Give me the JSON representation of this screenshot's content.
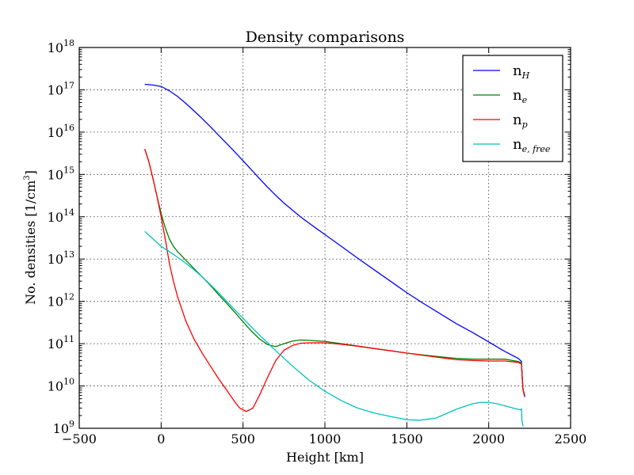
{
  "chart_data": {
    "type": "line",
    "title": "Density comparisons",
    "xlabel": "Height [km]",
    "ylabel": "No. densities [1/cm",
    "ylabel_sup": "3",
    "ylabel_end": "]",
    "xlim": [
      -500,
      2500
    ],
    "ylim": [
      1000000000.0,
      1e+18
    ],
    "yscale": "log",
    "grid": true,
    "legend_position": "top-right",
    "xticks": [
      -500,
      0,
      500,
      1000,
      1500,
      2000,
      2500
    ],
    "xtick_labels": [
      "−500",
      "0",
      "500",
      "1000",
      "1500",
      "2000",
      "2500"
    ],
    "ytick_exponents": [
      9,
      10,
      11,
      12,
      13,
      14,
      15,
      16,
      17,
      18
    ],
    "ytick_base": "10",
    "series": [
      {
        "name": "n",
        "name_sub": "H",
        "color": "#0000ff",
        "points": [
          [
            -100,
            1.35e+17
          ],
          [
            -50,
            1.3e+17
          ],
          [
            0,
            1.2e+17
          ],
          [
            50,
            9.5e+16
          ],
          [
            100,
            7e+16
          ],
          [
            150,
            4.8e+16
          ],
          [
            200,
            3.2e+16
          ],
          [
            250,
            2.1e+16
          ],
          [
            300,
            1.35e+16
          ],
          [
            350,
            8500000000000000.0
          ],
          [
            400,
            5400000000000000.0
          ],
          [
            450,
            3400000000000000.0
          ],
          [
            500,
            2100000000000000.0
          ],
          [
            550,
            1300000000000000.0
          ],
          [
            600,
            800000000000000.0
          ],
          [
            650,
            500000000000000.0
          ],
          [
            700,
            320000000000000.0
          ],
          [
            750,
            210000000000000.0
          ],
          [
            800,
            145000000000000.0
          ],
          [
            850,
            100000000000000.0
          ],
          [
            900,
            72000000000000.0
          ],
          [
            950,
            52000000000000.0
          ],
          [
            1000,
            38000000000000.0
          ],
          [
            1100,
            20000000000000.0
          ],
          [
            1200,
            10500000000000.0
          ],
          [
            1300,
            5600000000000.0
          ],
          [
            1400,
            3000000000000.0
          ],
          [
            1500,
            1600000000000.0
          ],
          [
            1600,
            900000000000.0
          ],
          [
            1700,
            520000000000.0
          ],
          [
            1800,
            300000000000.0
          ],
          [
            1900,
            185000000000.0
          ],
          [
            2000,
            110000000000.0
          ],
          [
            2100,
            65000000000.0
          ],
          [
            2180,
            45000000000.0
          ],
          [
            2200,
            38000000000.0
          ],
          [
            2205,
            15000000000.0
          ],
          [
            2210,
            8000000000.0
          ],
          [
            2220,
            5500000000.0
          ]
        ]
      },
      {
        "name": "n",
        "name_sub": "e",
        "color": "#008000",
        "points": [
          [
            -100,
            4000000000000000.0
          ],
          [
            -75,
            2000000000000000.0
          ],
          [
            -50,
            800000000000000.0
          ],
          [
            -25,
            300000000000000.0
          ],
          [
            0,
            120000000000000.0
          ],
          [
            25,
            55000000000000.0
          ],
          [
            50,
            30000000000000.0
          ],
          [
            75,
            20000000000000.0
          ],
          [
            100,
            15000000000000.0
          ],
          [
            150,
            9500000000000.0
          ],
          [
            200,
            6000000000000.0
          ],
          [
            250,
            3800000000000.0
          ],
          [
            300,
            2400000000000.0
          ],
          [
            350,
            1450000000000.0
          ],
          [
            400,
            900000000000.0
          ],
          [
            450,
            550000000000.0
          ],
          [
            500,
            330000000000.0
          ],
          [
            550,
            200000000000.0
          ],
          [
            600,
            130000000000.0
          ],
          [
            650,
            95000000000.0
          ],
          [
            700,
            85000000000.0
          ],
          [
            750,
            100000000000.0
          ],
          [
            800,
            115000000000.0
          ],
          [
            850,
            122000000000.0
          ],
          [
            900,
            120000000000.0
          ],
          [
            1000,
            113000000000.0
          ],
          [
            1100,
            100000000000.0
          ],
          [
            1200,
            88000000000.0
          ],
          [
            1300,
            77000000000.0
          ],
          [
            1400,
            68000000000.0
          ],
          [
            1500,
            60000000000.0
          ],
          [
            1600,
            54000000000.0
          ],
          [
            1700,
            49000000000.0
          ],
          [
            1800,
            45000000000.0
          ],
          [
            1900,
            43000000000.0
          ],
          [
            2000,
            43000000000.0
          ],
          [
            2100,
            43000000000.0
          ],
          [
            2180,
            38000000000.0
          ],
          [
            2200,
            35000000000.0
          ],
          [
            2205,
            15000000000.0
          ],
          [
            2210,
            8000000000.0
          ],
          [
            2220,
            6000000000.0
          ]
        ]
      },
      {
        "name": "n",
        "name_sub": "p",
        "color": "#ff0000",
        "points": [
          [
            -100,
            4000000000000000.0
          ],
          [
            -75,
            2000000000000000.0
          ],
          [
            -50,
            800000000000000.0
          ],
          [
            -25,
            300000000000000.0
          ],
          [
            0,
            100000000000000.0
          ],
          [
            25,
            30000000000000.0
          ],
          [
            50,
            8000000000000.0
          ],
          [
            75,
            3000000000000.0
          ],
          [
            100,
            1300000000000.0
          ],
          [
            150,
            350000000000.0
          ],
          [
            200,
            130000000000.0
          ],
          [
            250,
            60000000000.0
          ],
          [
            300,
            30000000000.0
          ],
          [
            350,
            15000000000.0
          ],
          [
            400,
            8000000000.0
          ],
          [
            450,
            4200000000.0
          ],
          [
            480,
            3000000000.0
          ],
          [
            520,
            2500000000.0
          ],
          [
            560,
            3000000000.0
          ],
          [
            600,
            6000000000.0
          ],
          [
            650,
            16000000000.0
          ],
          [
            700,
            40000000000.0
          ],
          [
            750,
            70000000000.0
          ],
          [
            800,
            90000000000.0
          ],
          [
            850,
            102000000000.0
          ],
          [
            900,
            105000000000.0
          ],
          [
            1000,
            105000000000.0
          ],
          [
            1100,
            97000000000.0
          ],
          [
            1200,
            87000000000.0
          ],
          [
            1300,
            77000000000.0
          ],
          [
            1400,
            68000000000.0
          ],
          [
            1500,
            60000000000.0
          ],
          [
            1600,
            53000000000.0
          ],
          [
            1700,
            47000000000.0
          ],
          [
            1800,
            42000000000.0
          ],
          [
            1900,
            40000000000.0
          ],
          [
            2000,
            39000000000.0
          ],
          [
            2100,
            39000000000.0
          ],
          [
            2180,
            36000000000.0
          ],
          [
            2200,
            33000000000.0
          ],
          [
            2205,
            15000000000.0
          ],
          [
            2210,
            8000000000.0
          ],
          [
            2220,
            6000000000.0
          ]
        ]
      },
      {
        "name": "n",
        "name_sub": "e, free",
        "color": "#00bfbf",
        "points": [
          [
            -100,
            45000000000000.0
          ],
          [
            -50,
            30000000000000.0
          ],
          [
            0,
            20000000000000.0
          ],
          [
            50,
            15000000000000.0
          ],
          [
            100,
            11000000000000.0
          ],
          [
            150,
            8000000000000.0
          ],
          [
            200,
            5600000000000.0
          ],
          [
            250,
            3800000000000.0
          ],
          [
            300,
            2500000000000.0
          ],
          [
            350,
            1600000000000.0
          ],
          [
            400,
            1000000000000.0
          ],
          [
            450,
            630000000000.0
          ],
          [
            500,
            400000000000.0
          ],
          [
            550,
            250000000000.0
          ],
          [
            600,
            160000000000.0
          ],
          [
            650,
            105000000000.0
          ],
          [
            700,
            68000000000.0
          ],
          [
            800,
            30000000000.0
          ],
          [
            900,
            14000000000.0
          ],
          [
            1000,
            7500000000.0
          ],
          [
            1100,
            4500000000.0
          ],
          [
            1200,
            3000000000.0
          ],
          [
            1300,
            2300000000.0
          ],
          [
            1400,
            1900000000.0
          ],
          [
            1500,
            1600000000.0
          ],
          [
            1580,
            1550000000.0
          ],
          [
            1680,
            1750000000.0
          ],
          [
            1800,
            2800000000.0
          ],
          [
            1900,
            3800000000.0
          ],
          [
            1950,
            4100000000.0
          ],
          [
            2000,
            4100000000.0
          ],
          [
            2050,
            3800000000.0
          ],
          [
            2100,
            3400000000.0
          ],
          [
            2150,
            3000000000.0
          ],
          [
            2200,
            2700000000.0
          ],
          [
            2200,
            3000000000.0
          ],
          [
            2203,
            1500000000.0
          ],
          [
            2210,
            1100000000.0
          ]
        ]
      }
    ]
  }
}
